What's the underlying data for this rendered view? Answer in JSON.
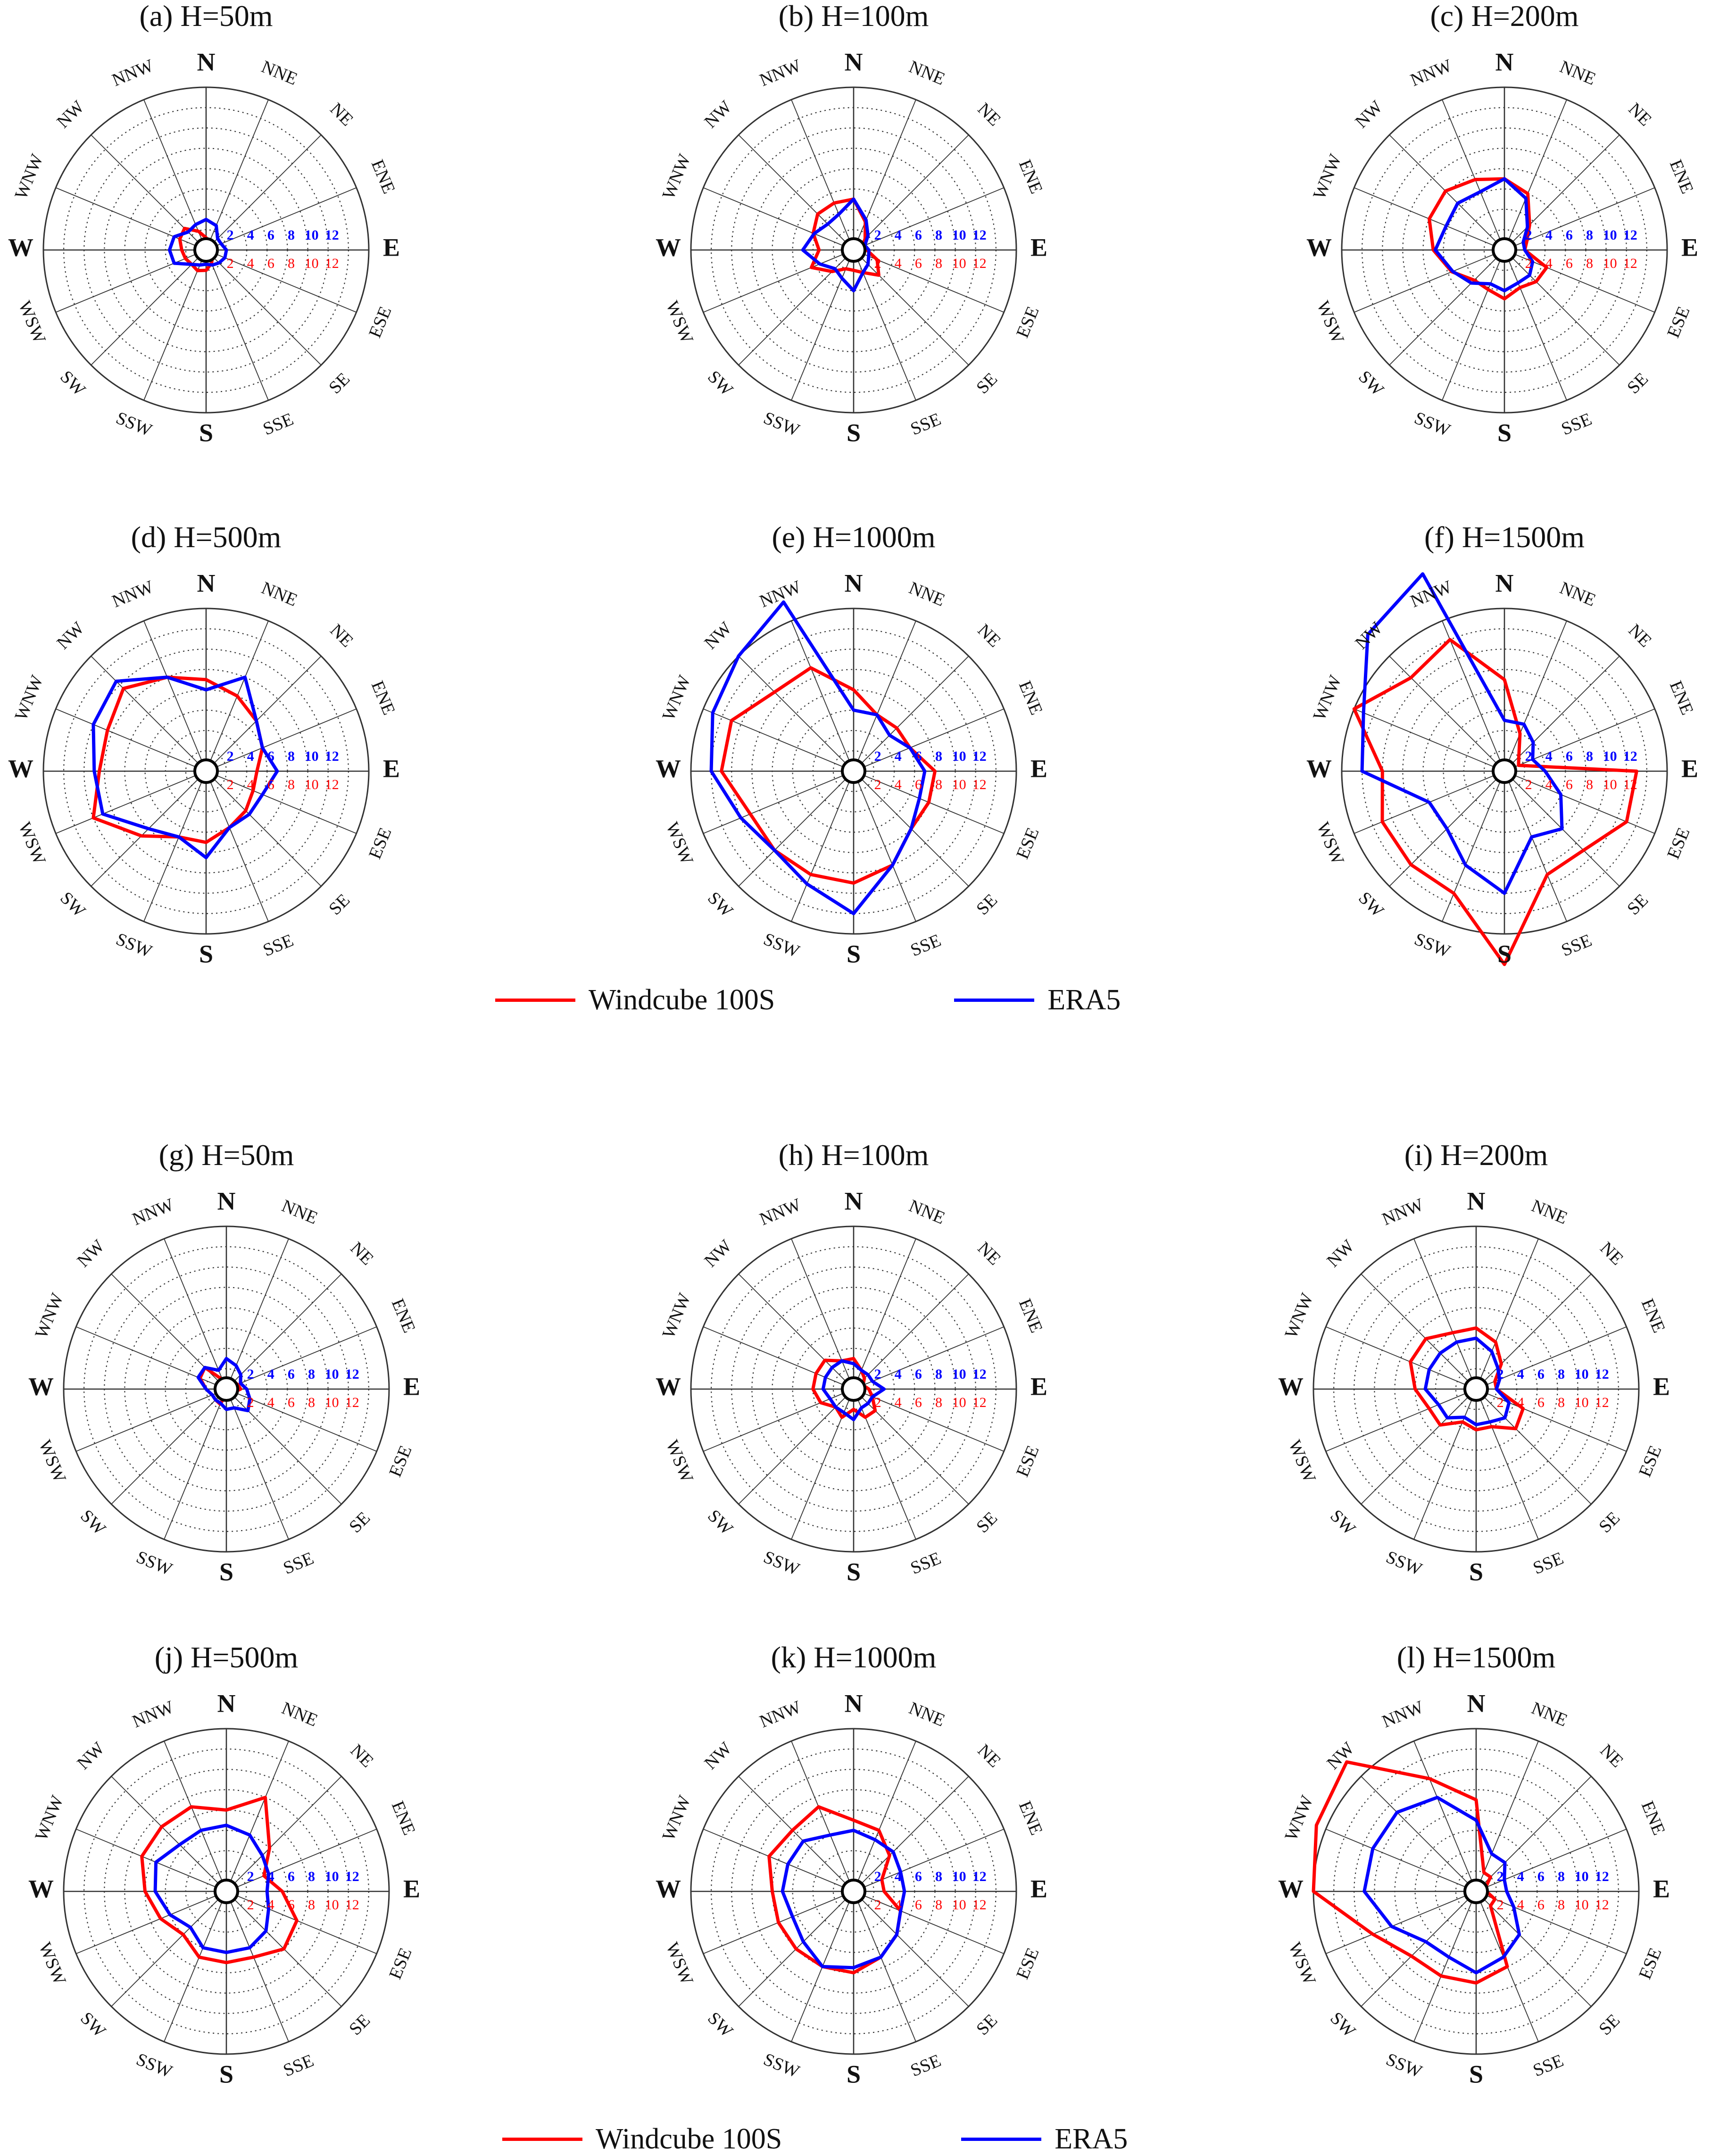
{
  "colors": {
    "windcube": "#ff0000",
    "era5": "#0000ff",
    "grid": "#333333",
    "text": "#111111"
  },
  "directions": [
    "N",
    "NNE",
    "NE",
    "ENE",
    "E",
    "ESE",
    "SE",
    "SSE",
    "S",
    "SSW",
    "SW",
    "WSW",
    "W",
    "WNW",
    "NW",
    "NNW"
  ],
  "radial_ticks": [
    "2",
    "4",
    "6",
    "8",
    "10",
    "12"
  ],
  "legends": [
    {
      "windcube_label": "Windcube 100S",
      "era5_label": "ERA5"
    },
    {
      "windcube_label": "Windcube 100S",
      "era5_label": "ERA5"
    }
  ],
  "chart_data": [
    {
      "type": "radar",
      "title": "(a) H=50m",
      "rmax": 16,
      "categories_ref": "directions",
      "series": [
        {
          "name": "Windcube 100S",
          "values": [
            1.2,
            0.9,
            0.6,
            0.5,
            1.0,
            0.8,
            0.9,
            1.4,
            2.0,
            2.2,
            2.0,
            2.2,
            2.4,
            2.8,
            3.0,
            2.0
          ]
        },
        {
          "name": "ERA5",
          "values": [
            3.0,
            2.6,
            1.6,
            1.6,
            2.0,
            2.0,
            1.8,
            1.6,
            1.4,
            1.6,
            2.0,
            3.4,
            3.6,
            3.4,
            2.5,
            2.7
          ]
        }
      ]
    },
    {
      "type": "radar",
      "title": "(b) H=100m",
      "rmax": 16,
      "categories_ref": "directions",
      "series": [
        {
          "name": "Windcube 100S",
          "values": [
            5.0,
            3.0,
            1.6,
            1.0,
            1.3,
            2.5,
            3.5,
            2.4,
            2.0,
            2.0,
            3.0,
            4.5,
            3.4,
            4.3,
            5.0,
            5.0
          ]
        },
        {
          "name": "ERA5",
          "values": [
            5.0,
            3.2,
            2.0,
            1.2,
            1.5,
            1.6,
            2.0,
            2.4,
            4.0,
            3.0,
            2.6,
            3.6,
            5.0,
            4.2,
            3.6,
            3.8
          ]
        }
      ]
    },
    {
      "type": "radar",
      "title": "(c) H=200m",
      "rmax": 16,
      "categories_ref": "directions",
      "series": [
        {
          "name": "Windcube 100S",
          "values": [
            7.0,
            6.0,
            3.5,
            2.4,
            2.0,
            4.5,
            4.4,
            4.0,
            4.8,
            4.2,
            4.2,
            5.6,
            7.0,
            8.0,
            8.2,
            7.5
          ]
        },
        {
          "name": "ERA5",
          "values": [
            7.0,
            5.5,
            3.2,
            2.0,
            2.0,
            3.0,
            3.5,
            3.5,
            4.0,
            3.6,
            4.6,
            5.5,
            6.8,
            6.2,
            6.5,
            6.2
          ]
        }
      ]
    },
    {
      "type": "radar",
      "title": "(d) H=500m",
      "rmax": 16,
      "categories_ref": "directions",
      "series": [
        {
          "name": "Windcube 100S",
          "values": [
            9.0,
            8.0,
            7.0,
            6.0,
            5.0,
            5.0,
            5.5,
            6.0,
            7.0,
            7.0,
            9.0,
            12.0,
            10.5,
            10.5,
            11.5,
            10.0
          ]
        },
        {
          "name": "ERA5",
          "values": [
            8.0,
            10.0,
            7.0,
            6.0,
            7.0,
            6.0,
            6.0,
            6.0,
            8.5,
            7.0,
            8.0,
            11.0,
            11.0,
            12.0,
            12.5,
            10.0
          ]
        }
      ]
    },
    {
      "type": "radar",
      "title": "(e) H=1000m",
      "rmax": 16,
      "categories_ref": "directions",
      "series": [
        {
          "name": "Windcube 100S",
          "values": [
            8.0,
            6.0,
            6.0,
            6.0,
            8.0,
            8.0,
            8.0,
            10.0,
            11.0,
            11.0,
            11.0,
            11.0,
            13.0,
            13.0,
            11.0,
            11.0
          ]
        },
        {
          "name": "ERA5",
          "values": [
            6.0,
            6.0,
            5.0,
            6.0,
            7.0,
            7.0,
            8.0,
            10.0,
            14.0,
            12.0,
            11.0,
            12.0,
            14.0,
            15.0,
            16.0,
            18.0
          ]
        }
      ]
    },
    {
      "type": "radar",
      "title": "(f) H=1500m",
      "rmax": 16,
      "categories_ref": "directions",
      "series": [
        {
          "name": "Windcube 100S",
          "values": [
            9.0,
            4.0,
            2.0,
            1.5,
            13.0,
            13.0,
            11.0,
            11.0,
            19.0,
            13.0,
            13.0,
            13.0,
            12.0,
            16.0,
            13.0,
            14.0
          ]
        },
        {
          "name": "ERA5",
          "values": [
            5.0,
            5.0,
            4.0,
            3.0,
            4.0,
            6.0,
            8.0,
            7.0,
            12.0,
            10.0,
            8.0,
            8.0,
            14.0,
            15.0,
            19.0,
            21.0
          ]
        }
      ]
    },
    {
      "type": "radar",
      "title": "(g) H=50m",
      "rmax": 16,
      "categories_ref": "directions",
      "series": [
        {
          "name": "Windcube 100S",
          "values": [
            1.0,
            0.5,
            1.0,
            1.2,
            1.4,
            0.8,
            0.5,
            0.5,
            0.5,
            1.6,
            1.5,
            1.5,
            2.0,
            2.8,
            3.0,
            1.0
          ]
        },
        {
          "name": "ERA5",
          "values": [
            3.0,
            2.5,
            2.0,
            1.5,
            2.0,
            2.5,
            3.0,
            2.0,
            2.0,
            1.5,
            1.5,
            1.5,
            2.0,
            3.0,
            3.0,
            2.0
          ]
        }
      ]
    },
    {
      "type": "radar",
      "title": "(h) H=100m",
      "rmax": 16,
      "categories_ref": "directions",
      "series": [
        {
          "name": "Windcube 100S",
          "values": [
            3.0,
            2.0,
            1.5,
            1.0,
            1.5,
            2.0,
            3.0,
            3.0,
            2.0,
            3.0,
            2.5,
            3.5,
            4.0,
            4.0,
            4.0,
            3.0
          ]
        },
        {
          "name": "ERA5",
          "values": [
            2.5,
            2.0,
            2.0,
            2.0,
            3.0,
            2.0,
            2.0,
            2.0,
            3.0,
            2.5,
            2.5,
            2.5,
            3.0,
            3.0,
            3.0,
            3.0
          ]
        }
      ]
    },
    {
      "type": "radar",
      "title": "(i) H=200m",
      "rmax": 16,
      "categories_ref": "directions",
      "series": [
        {
          "name": "Windcube 100S",
          "values": [
            6.0,
            5.0,
            3.5,
            2.0,
            2.0,
            5.0,
            5.5,
            4.0,
            4.0,
            3.5,
            5.0,
            5.0,
            6.0,
            7.0,
            7.0,
            6.0
          ]
        },
        {
          "name": "ERA5",
          "values": [
            5.0,
            4.0,
            3.0,
            2.5,
            2.0,
            3.5,
            4.0,
            3.5,
            3.5,
            3.0,
            4.0,
            4.0,
            5.0,
            5.0,
            5.0,
            5.0
          ]
        }
      ]
    },
    {
      "type": "radar",
      "title": "(j) H=500m",
      "rmax": 16,
      "categories_ref": "directions",
      "series": [
        {
          "name": "Windcube 100S",
          "values": [
            8.0,
            10.0,
            6.0,
            4.0,
            5.5,
            7.5,
            8.0,
            7.0,
            7.0,
            7.0,
            6.0,
            7.0,
            8.0,
            9.0,
            9.0,
            9.0
          ]
        },
        {
          "name": "ERA5",
          "values": [
            6.5,
            6.0,
            5.0,
            4.5,
            4.0,
            4.5,
            5.5,
            6.0,
            6.0,
            6.0,
            5.0,
            6.0,
            7.0,
            7.5,
            6.5,
            6.5
          ]
        }
      ]
    },
    {
      "type": "radar",
      "title": "(k) H=1000m",
      "rmax": 16,
      "categories_ref": "directions",
      "series": [
        {
          "name": "Windcube 100S",
          "values": [
            7.0,
            6.5,
            5.0,
            3.0,
            3.0,
            5.0,
            6.0,
            7.0,
            8.0,
            8.0,
            8.0,
            8.0,
            8.0,
            9.0,
            8.5,
            9.0
          ]
        },
        {
          "name": "ERA5",
          "values": [
            6.0,
            5.5,
            5.5,
            5.0,
            5.0,
            5.0,
            6.0,
            7.0,
            7.5,
            8.0,
            7.0,
            6.5,
            7.0,
            7.0,
            7.0,
            6.0
          ]
        }
      ]
    },
    {
      "type": "radar",
      "title": "(l) H=1500m",
      "rmax": 16,
      "categories_ref": "directions",
      "series": [
        {
          "name": "Windcube 100S",
          "values": [
            9.0,
            2.0,
            2.0,
            1.0,
            1.0,
            2.0,
            2.0,
            8.0,
            9.0,
            9.0,
            9.0,
            11.0,
            16.0,
            17.0,
            18.0,
            12.0
          ]
        },
        {
          "name": "ERA5",
          "values": [
            7.0,
            4.0,
            4.0,
            3.0,
            3.0,
            4.0,
            6.0,
            7.0,
            8.0,
            7.0,
            7.0,
            9.0,
            11.0,
            11.0,
            11.0,
            10.0
          ]
        }
      ]
    }
  ]
}
